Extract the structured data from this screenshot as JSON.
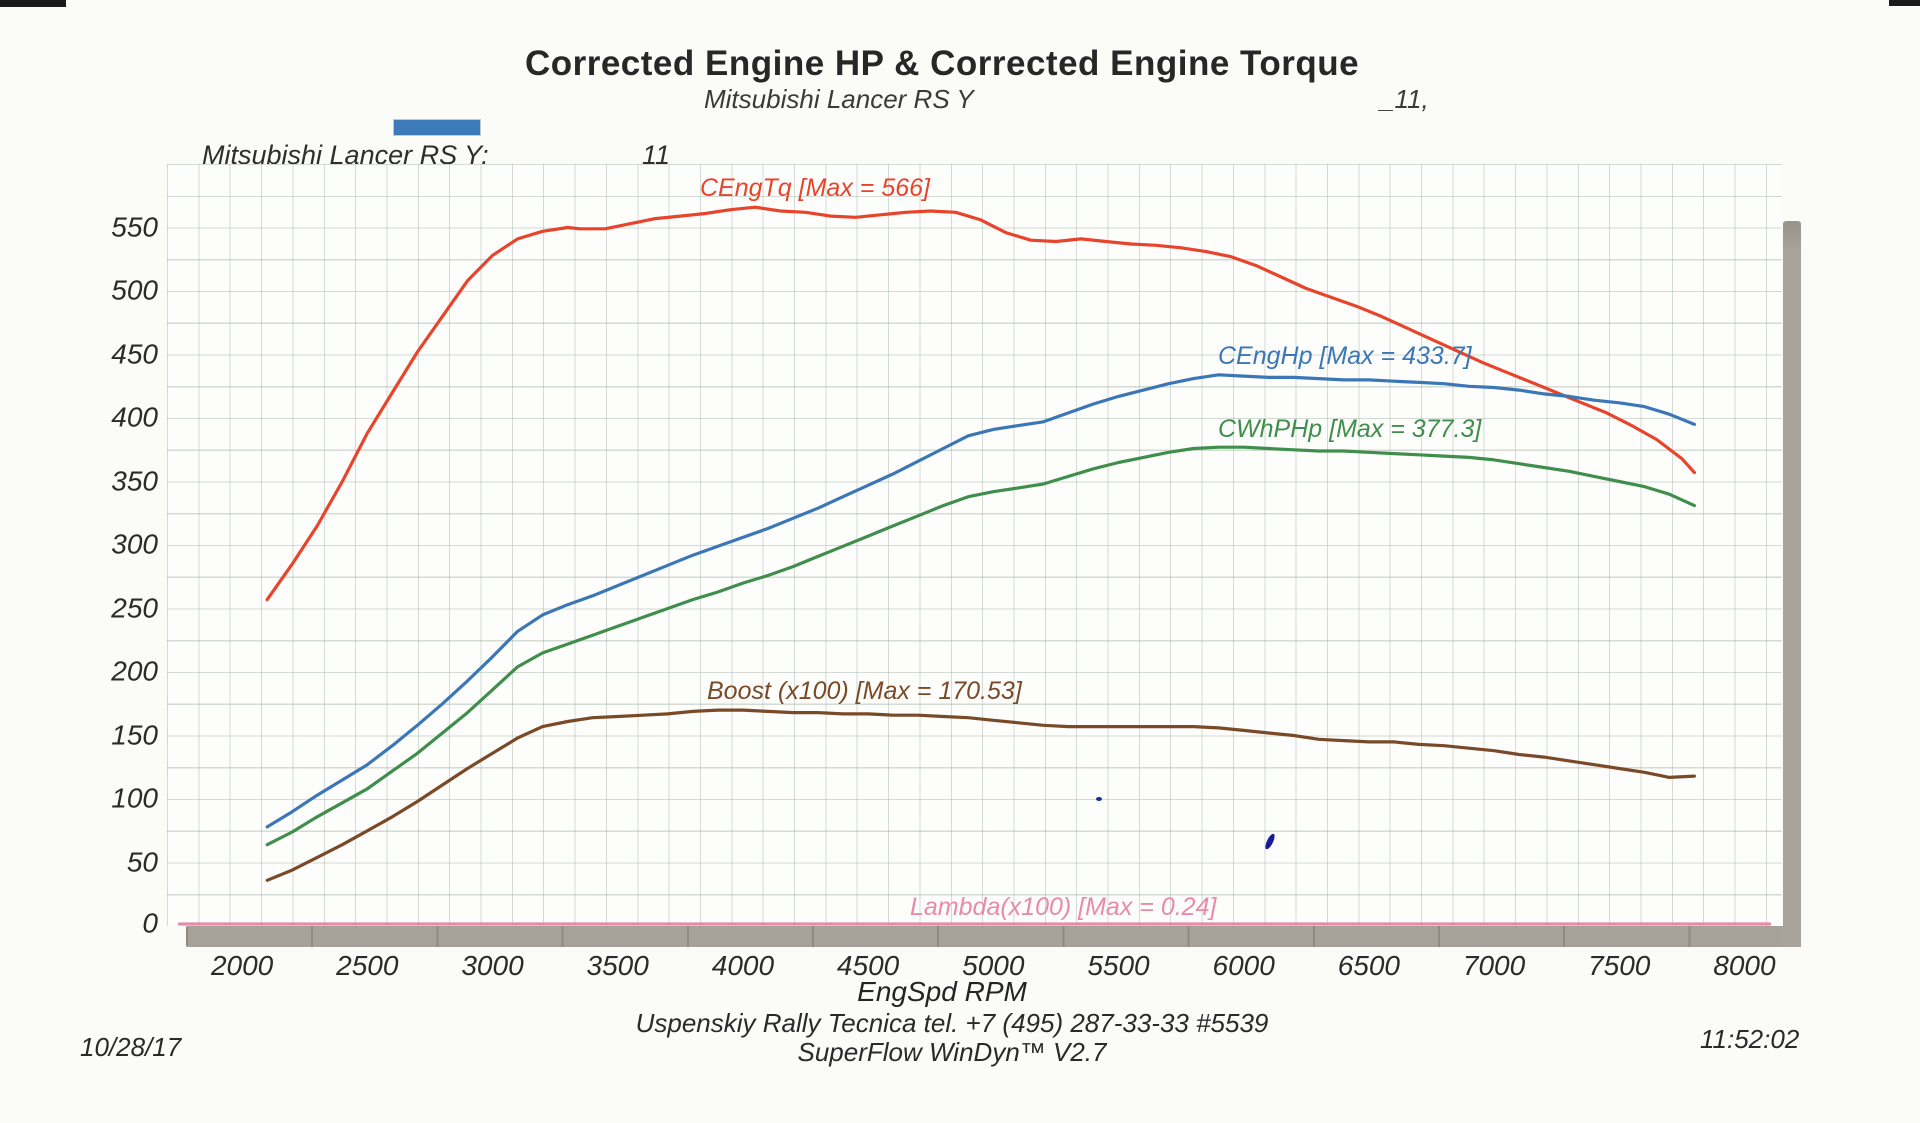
{
  "page": {
    "title": "Corrected Engine HP & Corrected Engine Torque",
    "subtitle_left": "Mitsubishi Lancer RS Y",
    "subtitle_right": "_11,",
    "date": "10/28/17",
    "time": "11:52:02",
    "footer_line1": "Uspenskiy Rally Tecnica   tel. +7 (495) 287-33-33 #5539",
    "footer_line2": "SuperFlow WinDyn™ V2.7"
  },
  "legend": {
    "swatch_color": "#3d7ab9",
    "label_left": "Mitsubishi Lancer RS Y:",
    "label_right": "_11"
  },
  "chart_data": {
    "type": "line",
    "title": "Corrected Engine HP & Corrected Engine Torque",
    "subtitle": "Mitsubishi Lancer RS Y _11",
    "xlabel": "EngSpd  RPM",
    "ylabel": "",
    "xlim": [
      1700,
      8150
    ],
    "ylim": [
      0,
      600
    ],
    "xticks": [
      2000,
      2500,
      3000,
      3500,
      4000,
      4500,
      5000,
      5500,
      6000,
      6500,
      7000,
      7500,
      8000
    ],
    "yticks": [
      0,
      50,
      100,
      150,
      200,
      250,
      300,
      350,
      400,
      450,
      500,
      550
    ],
    "grid": true,
    "legend_position": "top-left",
    "series": [
      {
        "name": "CEngTq",
        "label": "CEngTq [Max = 566]",
        "color": "#e8442b",
        "max": 566,
        "points": [
          [
            2100,
            257
          ],
          [
            2200,
            285
          ],
          [
            2300,
            315
          ],
          [
            2400,
            350
          ],
          [
            2500,
            388
          ],
          [
            2600,
            420
          ],
          [
            2700,
            452
          ],
          [
            2800,
            480
          ],
          [
            2900,
            508
          ],
          [
            3000,
            528
          ],
          [
            3100,
            541
          ],
          [
            3200,
            547
          ],
          [
            3300,
            550
          ],
          [
            3350,
            549
          ],
          [
            3450,
            549
          ],
          [
            3550,
            553
          ],
          [
            3650,
            557
          ],
          [
            3750,
            559
          ],
          [
            3850,
            561
          ],
          [
            3950,
            564
          ],
          [
            4050,
            566
          ],
          [
            4150,
            563
          ],
          [
            4250,
            562
          ],
          [
            4350,
            559
          ],
          [
            4450,
            558
          ],
          [
            4550,
            560
          ],
          [
            4650,
            562
          ],
          [
            4750,
            563
          ],
          [
            4850,
            562
          ],
          [
            4950,
            556
          ],
          [
            5050,
            546
          ],
          [
            5150,
            540
          ],
          [
            5250,
            539
          ],
          [
            5350,
            541
          ],
          [
            5450,
            539
          ],
          [
            5550,
            537
          ],
          [
            5650,
            536
          ],
          [
            5750,
            534
          ],
          [
            5850,
            531
          ],
          [
            5950,
            527
          ],
          [
            6050,
            520
          ],
          [
            6150,
            511
          ],
          [
            6250,
            502
          ],
          [
            6350,
            495
          ],
          [
            6450,
            488
          ],
          [
            6550,
            480
          ],
          [
            6650,
            471
          ],
          [
            6750,
            462
          ],
          [
            6850,
            453
          ],
          [
            6950,
            444
          ],
          [
            7050,
            436
          ],
          [
            7150,
            428
          ],
          [
            7250,
            420
          ],
          [
            7350,
            412
          ],
          [
            7450,
            404
          ],
          [
            7550,
            394
          ],
          [
            7650,
            383
          ],
          [
            7750,
            368
          ],
          [
            7800,
            357
          ]
        ]
      },
      {
        "name": "CEngHp",
        "label": "CEngHp [Max = 433.7]",
        "color": "#3b76b7",
        "max": 433.7,
        "points": [
          [
            2100,
            78
          ],
          [
            2200,
            90
          ],
          [
            2300,
            103
          ],
          [
            2400,
            115
          ],
          [
            2500,
            127
          ],
          [
            2600,
            142
          ],
          [
            2700,
            158
          ],
          [
            2800,
            175
          ],
          [
            2900,
            193
          ],
          [
            3000,
            212
          ],
          [
            3100,
            232
          ],
          [
            3200,
            245
          ],
          [
            3300,
            253
          ],
          [
            3400,
            260
          ],
          [
            3500,
            268
          ],
          [
            3600,
            276
          ],
          [
            3700,
            284
          ],
          [
            3800,
            292
          ],
          [
            3900,
            299
          ],
          [
            4000,
            306
          ],
          [
            4100,
            313
          ],
          [
            4200,
            321
          ],
          [
            4300,
            329
          ],
          [
            4400,
            338
          ],
          [
            4500,
            347
          ],
          [
            4600,
            356
          ],
          [
            4700,
            366
          ],
          [
            4800,
            376
          ],
          [
            4900,
            386
          ],
          [
            5000,
            391
          ],
          [
            5100,
            394
          ],
          [
            5200,
            397
          ],
          [
            5300,
            404
          ],
          [
            5400,
            411
          ],
          [
            5500,
            417
          ],
          [
            5600,
            422
          ],
          [
            5700,
            427
          ],
          [
            5800,
            431
          ],
          [
            5900,
            434
          ],
          [
            6000,
            433
          ],
          [
            6100,
            432
          ],
          [
            6200,
            432
          ],
          [
            6300,
            431
          ],
          [
            6400,
            430
          ],
          [
            6500,
            430
          ],
          [
            6600,
            429
          ],
          [
            6700,
            428
          ],
          [
            6800,
            427
          ],
          [
            6900,
            425
          ],
          [
            7000,
            424
          ],
          [
            7100,
            422
          ],
          [
            7200,
            419
          ],
          [
            7300,
            417
          ],
          [
            7400,
            414
          ],
          [
            7500,
            412
          ],
          [
            7600,
            409
          ],
          [
            7700,
            403
          ],
          [
            7800,
            395
          ]
        ]
      },
      {
        "name": "CWhPHp",
        "label": "CWhPHp [Max = 377.3]",
        "color": "#3f8e4b",
        "max": 377.3,
        "points": [
          [
            2100,
            64
          ],
          [
            2200,
            74
          ],
          [
            2300,
            86
          ],
          [
            2400,
            97
          ],
          [
            2500,
            108
          ],
          [
            2600,
            122
          ],
          [
            2700,
            136
          ],
          [
            2800,
            152
          ],
          [
            2900,
            168
          ],
          [
            3000,
            186
          ],
          [
            3100,
            204
          ],
          [
            3200,
            215
          ],
          [
            3300,
            222
          ],
          [
            3400,
            229
          ],
          [
            3500,
            236
          ],
          [
            3600,
            243
          ],
          [
            3700,
            250
          ],
          [
            3800,
            257
          ],
          [
            3900,
            263
          ],
          [
            4000,
            270
          ],
          [
            4100,
            276
          ],
          [
            4200,
            283
          ],
          [
            4300,
            291
          ],
          [
            4400,
            299
          ],
          [
            4500,
            307
          ],
          [
            4600,
            315
          ],
          [
            4700,
            323
          ],
          [
            4800,
            331
          ],
          [
            4900,
            338
          ],
          [
            5000,
            342
          ],
          [
            5100,
            345
          ],
          [
            5200,
            348
          ],
          [
            5300,
            354
          ],
          [
            5400,
            360
          ],
          [
            5500,
            365
          ],
          [
            5600,
            369
          ],
          [
            5700,
            373
          ],
          [
            5800,
            376
          ],
          [
            5900,
            377
          ],
          [
            6000,
            377
          ],
          [
            6100,
            376
          ],
          [
            6200,
            375
          ],
          [
            6300,
            374
          ],
          [
            6400,
            374
          ],
          [
            6500,
            373
          ],
          [
            6600,
            372
          ],
          [
            6700,
            371
          ],
          [
            6800,
            370
          ],
          [
            6900,
            369
          ],
          [
            7000,
            367
          ],
          [
            7100,
            364
          ],
          [
            7200,
            361
          ],
          [
            7300,
            358
          ],
          [
            7400,
            354
          ],
          [
            7500,
            350
          ],
          [
            7600,
            346
          ],
          [
            7700,
            340
          ],
          [
            7800,
            331
          ]
        ]
      },
      {
        "name": "Boost",
        "label": "Boost (x100) [Max = 170.53]",
        "color": "#7a4a28",
        "max": 170.53,
        "points": [
          [
            2100,
            36
          ],
          [
            2200,
            44
          ],
          [
            2300,
            54
          ],
          [
            2400,
            64
          ],
          [
            2500,
            75
          ],
          [
            2600,
            86
          ],
          [
            2700,
            98
          ],
          [
            2800,
            111
          ],
          [
            2900,
            124
          ],
          [
            3000,
            136
          ],
          [
            3100,
            148
          ],
          [
            3200,
            157
          ],
          [
            3300,
            161
          ],
          [
            3400,
            164
          ],
          [
            3500,
            165
          ],
          [
            3600,
            166
          ],
          [
            3700,
            167
          ],
          [
            3800,
            169
          ],
          [
            3900,
            170
          ],
          [
            4000,
            170
          ],
          [
            4100,
            169
          ],
          [
            4200,
            168
          ],
          [
            4300,
            168
          ],
          [
            4400,
            167
          ],
          [
            4500,
            167
          ],
          [
            4600,
            166
          ],
          [
            4700,
            166
          ],
          [
            4800,
            165
          ],
          [
            4900,
            164
          ],
          [
            5000,
            162
          ],
          [
            5100,
            160
          ],
          [
            5200,
            158
          ],
          [
            5300,
            157
          ],
          [
            5400,
            157
          ],
          [
            5500,
            157
          ],
          [
            5600,
            157
          ],
          [
            5700,
            157
          ],
          [
            5800,
            157
          ],
          [
            5900,
            156
          ],
          [
            6000,
            154
          ],
          [
            6100,
            152
          ],
          [
            6200,
            150
          ],
          [
            6300,
            147
          ],
          [
            6400,
            146
          ],
          [
            6500,
            145
          ],
          [
            6600,
            145
          ],
          [
            6700,
            143
          ],
          [
            6800,
            142
          ],
          [
            6900,
            140
          ],
          [
            7000,
            138
          ],
          [
            7100,
            135
          ],
          [
            7200,
            133
          ],
          [
            7300,
            130
          ],
          [
            7400,
            127
          ],
          [
            7500,
            124
          ],
          [
            7600,
            121
          ],
          [
            7700,
            117
          ],
          [
            7800,
            118
          ]
        ]
      },
      {
        "name": "Lambda",
        "label": "Lambda(x100) [Max = 0.24]",
        "color": "#e78aab",
        "max": 0.24,
        "points": [
          [
            1750,
            0.24
          ],
          [
            3000,
            0.24
          ],
          [
            4500,
            0.24
          ],
          [
            6000,
            0.24
          ],
          [
            8100,
            0.24
          ]
        ]
      }
    ]
  }
}
